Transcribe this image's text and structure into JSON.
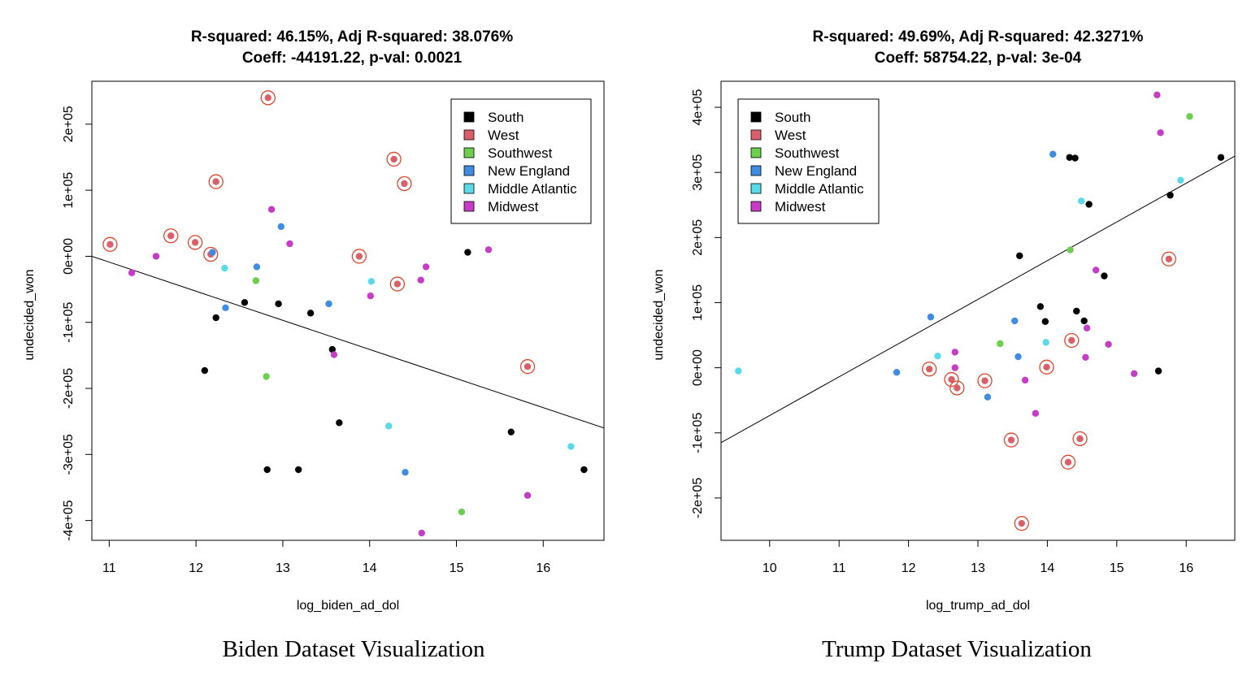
{
  "chart_data": [
    {
      "type": "scatter",
      "title": "R-squared: 46.15%, Adj R-squared: 38.076%",
      "subtitle": "Coeff: -44191.22, p-val: 0.0021",
      "xlabel": "log_biden_ad_dol",
      "ylabel": "undecided_won",
      "caption": "Biden Dataset Visualization",
      "xlim": [
        10.8,
        16.7
      ],
      "ylim": [
        -430000,
        265000
      ],
      "xticks": [
        11,
        12,
        13,
        14,
        15,
        16
      ],
      "xtick_labels": [
        "11",
        "12",
        "13",
        "14",
        "15",
        "16"
      ],
      "yticks": [
        200000,
        100000,
        0,
        -100000,
        -200000,
        -300000,
        -400000
      ],
      "ytick_labels": [
        "2e+05",
        "1e+05",
        "0e+00",
        "-1e+05",
        "-2e+05",
        "-3e+05",
        "-4e+05"
      ],
      "legend": {
        "position": "top-right",
        "entries": [
          {
            "name": "South",
            "color": "#000000"
          },
          {
            "name": "West",
            "color": "#d95f6a"
          },
          {
            "name": "Southwest",
            "color": "#6ccf4e"
          },
          {
            "name": "New England",
            "color": "#3f8ce0"
          },
          {
            "name": "Middle Atlantic",
            "color": "#5ad9e6"
          },
          {
            "name": "Midwest",
            "color": "#c63cc6"
          }
        ]
      },
      "regression_line": [
        {
          "x": 10.8,
          "y": 0
        },
        {
          "x": 16.7,
          "y": -260000
        }
      ],
      "series": [
        {
          "name": "South",
          "color": "#000000",
          "points": [
            [
              12.23,
              -93000
            ],
            [
              12.1,
              -173000
            ],
            [
              12.56,
              -70000
            ],
            [
              12.95,
              -72000
            ],
            [
              13.32,
              -86000
            ],
            [
              13.57,
              -141000
            ],
            [
              13.65,
              -252000
            ],
            [
              12.82,
              -323000
            ],
            [
              13.18,
              -323000
            ],
            [
              15.13,
              6000
            ],
            [
              15.63,
              -266000
            ],
            [
              16.47,
              -323000
            ]
          ]
        },
        {
          "name": "West",
          "color": "#d95f6a",
          "points": [
            [
              11.01,
              18000
            ],
            [
              11.71,
              31000
            ],
            [
              11.99,
              21000
            ],
            [
              12.17,
              3000
            ],
            [
              12.23,
              113000
            ],
            [
              12.83,
              240000
            ],
            [
              13.88,
              0
            ],
            [
              14.28,
              147000
            ],
            [
              14.4,
              110000
            ],
            [
              14.32,
              -42000
            ],
            [
              15.82,
              -167000
            ]
          ]
        },
        {
          "name": "Southwest",
          "color": "#6ccf4e",
          "points": [
            [
              12.69,
              -37000
            ],
            [
              12.81,
              -182000
            ],
            [
              15.06,
              -387000
            ]
          ]
        },
        {
          "name": "New England",
          "color": "#3f8ce0",
          "points": [
            [
              12.19,
              6000
            ],
            [
              12.34,
              -78000
            ],
            [
              12.7,
              -16000
            ],
            [
              12.98,
              45000
            ],
            [
              13.53,
              -72000
            ],
            [
              14.41,
              -327000
            ]
          ]
        },
        {
          "name": "Middle Atlantic",
          "color": "#5ad9e6",
          "points": [
            [
              12.33,
              -18000
            ],
            [
              14.02,
              -38000
            ],
            [
              14.22,
              -257000
            ],
            [
              16.32,
              -288000
            ]
          ]
        },
        {
          "name": "Midwest",
          "color": "#c63cc6",
          "points": [
            [
              11.26,
              -25000
            ],
            [
              11.54,
              0
            ],
            [
              12.87,
              71000
            ],
            [
              13.08,
              19000
            ],
            [
              13.59,
              -149000
            ],
            [
              14.01,
              -60000
            ],
            [
              14.59,
              -36000
            ],
            [
              14.65,
              -16000
            ],
            [
              15.37,
              10000
            ],
            [
              15.82,
              -362000
            ],
            [
              14.6,
              -419000
            ]
          ]
        }
      ],
      "highlighted_series": "West"
    },
    {
      "type": "scatter",
      "title": "R-squared: 49.69%, Adj R-squared: 42.3271%",
      "subtitle": "Coeff: 58754.22, p-val: 3e-04",
      "xlabel": "log_trump_ad_dol",
      "ylabel": "undecided_won",
      "caption": "Trump Dataset Visualization",
      "xlim": [
        9.3,
        16.7
      ],
      "ylim": [
        -265000,
        440000
      ],
      "xticks": [
        10,
        11,
        12,
        13,
        14,
        15,
        16
      ],
      "xtick_labels": [
        "10",
        "11",
        "12",
        "13",
        "14",
        "15",
        "16"
      ],
      "yticks": [
        400000,
        300000,
        200000,
        100000,
        0,
        -100000,
        -200000
      ],
      "ytick_labels": [
        "4e+05",
        "3e+05",
        "2e+05",
        "1e+05",
        "0e+00",
        "-1e+05",
        "-2e+05"
      ],
      "legend": {
        "position": "top-left",
        "entries": [
          {
            "name": "South",
            "color": "#000000"
          },
          {
            "name": "West",
            "color": "#d95f6a"
          },
          {
            "name": "Southwest",
            "color": "#6ccf4e"
          },
          {
            "name": "New England",
            "color": "#3f8ce0"
          },
          {
            "name": "Middle Atlantic",
            "color": "#5ad9e6"
          },
          {
            "name": "Midwest",
            "color": "#c63cc6"
          }
        ]
      },
      "regression_line": [
        {
          "x": 9.3,
          "y": -115000
        },
        {
          "x": 16.7,
          "y": 325000
        }
      ],
      "series": [
        {
          "name": "South",
          "color": "#000000",
          "points": [
            [
              13.6,
              172000
            ],
            [
              13.9,
              94000
            ],
            [
              13.97,
              71000
            ],
            [
              14.32,
              323000
            ],
            [
              14.4,
              322000
            ],
            [
              14.42,
              87000
            ],
            [
              14.53,
              72000
            ],
            [
              14.6,
              251000
            ],
            [
              14.82,
              141000
            ],
            [
              15.6,
              -5000
            ],
            [
              15.77,
              265000
            ],
            [
              16.5,
              323000
            ]
          ]
        },
        {
          "name": "West",
          "color": "#d95f6a",
          "points": [
            [
              12.3,
              -2000
            ],
            [
              12.62,
              -18000
            ],
            [
              12.7,
              -31000
            ],
            [
              13.1,
              -20000
            ],
            [
              13.48,
              -111000
            ],
            [
              13.63,
              -239000
            ],
            [
              13.99,
              1000
            ],
            [
              14.3,
              -145000
            ],
            [
              14.35,
              42000
            ],
            [
              14.47,
              -109000
            ],
            [
              15.75,
              167000
            ]
          ]
        },
        {
          "name": "Southwest",
          "color": "#6ccf4e",
          "points": [
            [
              13.32,
              37000
            ],
            [
              14.33,
              181000
            ],
            [
              16.05,
              386000
            ]
          ]
        },
        {
          "name": "New England",
          "color": "#3f8ce0",
          "points": [
            [
              11.83,
              -7000
            ],
            [
              12.32,
              78000
            ],
            [
              13.14,
              -45000
            ],
            [
              13.53,
              72000
            ],
            [
              13.58,
              17000
            ],
            [
              14.08,
              328000
            ]
          ]
        },
        {
          "name": "Middle Atlantic",
          "color": "#5ad9e6",
          "points": [
            [
              9.55,
              -5000
            ],
            [
              12.42,
              18000
            ],
            [
              13.98,
              39000
            ],
            [
              14.49,
              256000
            ],
            [
              15.92,
              288000
            ]
          ]
        },
        {
          "name": "Midwest",
          "color": "#c63cc6",
          "points": [
            [
              12.67,
              24000
            ],
            [
              12.67,
              0
            ],
            [
              13.68,
              -19000
            ],
            [
              13.83,
              -70000
            ],
            [
              14.55,
              16000
            ],
            [
              14.57,
              61000
            ],
            [
              14.7,
              150000
            ],
            [
              14.88,
              36000
            ],
            [
              15.25,
              -9000
            ],
            [
              15.58,
              419000
            ],
            [
              15.63,
              361000
            ]
          ]
        }
      ],
      "highlighted_series": "West"
    }
  ]
}
